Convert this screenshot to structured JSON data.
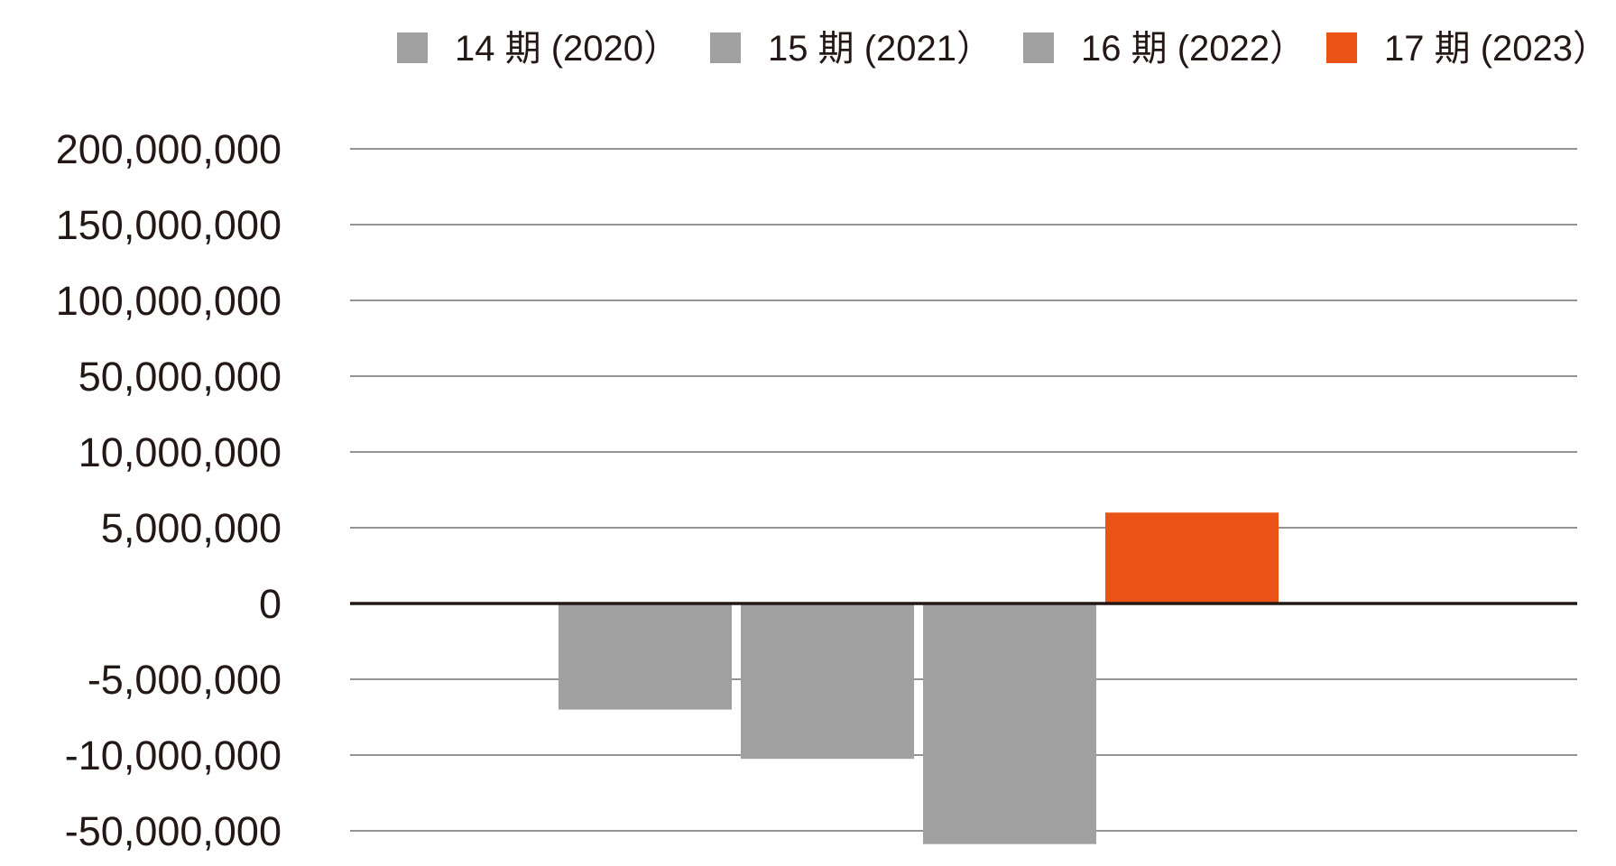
{
  "chart_data": {
    "type": "bar",
    "xlabel": "",
    "ylabel": "",
    "y_axis_scale": "non-linear (labelled ticks equally spaced)",
    "y_ticks": [
      {
        "value": 200000000,
        "label": "200,000,000"
      },
      {
        "value": 150000000,
        "label": "150,000,000"
      },
      {
        "value": 100000000,
        "label": "100,000,000"
      },
      {
        "value": 50000000,
        "label": "50,000,000"
      },
      {
        "value": 10000000,
        "label": "10,000,000"
      },
      {
        "value": 5000000,
        "label": "5,000,000"
      },
      {
        "value": 0,
        "label": "0"
      },
      {
        "value": -5000000,
        "label": "-5,000,000"
      },
      {
        "value": -10000000,
        "label": "-10,000,000"
      },
      {
        "value": -50000000,
        "label": "-50,000,000"
      }
    ],
    "grid": true,
    "legend_position": "top-right",
    "series": [
      {
        "name": "14 期 (2020）",
        "value": -7000000,
        "color": "#a0a0a0"
      },
      {
        "name": "15 期 (2021）",
        "value": -12000000,
        "color": "#a0a0a0"
      },
      {
        "name": "16 期 (2022）",
        "value": -57000000,
        "color": "#a0a0a0"
      },
      {
        "name": "17 期 (2023）",
        "value": 6000000,
        "color": "#e95416"
      }
    ]
  }
}
